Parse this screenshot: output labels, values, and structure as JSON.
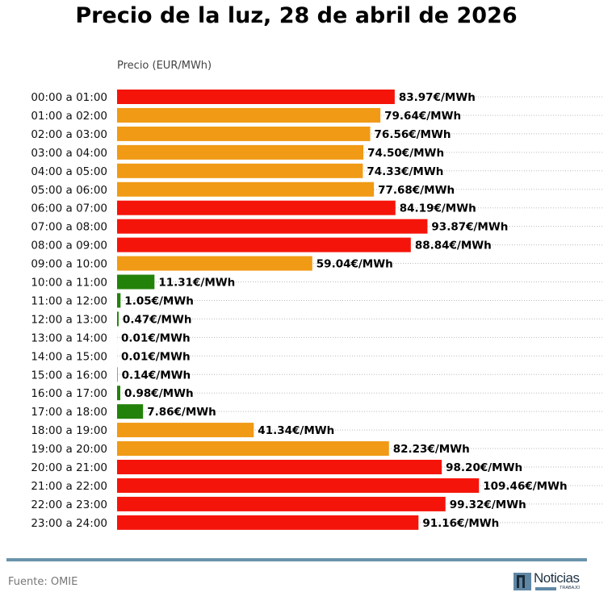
{
  "header": {
    "title": "Precio de la luz, 28 de abril de 2026"
  },
  "footer": {
    "source": "Fuente: OMIE",
    "logo_word": "Noticias",
    "logo_sub": "TRABAJO"
  },
  "colors": {
    "high": "#f5140a",
    "mid": "#f09a15",
    "low": "#23820a",
    "grid": "#bbbbbb",
    "rule": "#6a93ab"
  },
  "chart_data": {
    "type": "bar",
    "orientation": "horizontal",
    "title": "Precio de la luz, 28 de abril de 2026",
    "xlabel": "",
    "ylabel": "Precio (EUR/MWh)",
    "xlim": [
      0,
      147
    ],
    "grid": "dotted horizontal",
    "label_suffix": "€/MWh",
    "categories": [
      "00:00 a 01:00",
      "01:00 a 02:00",
      "02:00 a 03:00",
      "03:00 a 04:00",
      "04:00 a 05:00",
      "05:00 a 06:00",
      "06:00 a 07:00",
      "07:00 a 08:00",
      "08:00 a 09:00",
      "09:00 a 10:00",
      "10:00 a 11:00",
      "11:00 a 12:00",
      "12:00 a 13:00",
      "13:00 a 14:00",
      "14:00 a 15:00",
      "15:00 a 16:00",
      "16:00 a 17:00",
      "17:00 a 18:00",
      "18:00 a 19:00",
      "19:00 a 20:00",
      "20:00 a 21:00",
      "21:00 a 22:00",
      "22:00 a 23:00",
      "23:00 a 24:00"
    ],
    "values": [
      83.97,
      79.64,
      76.56,
      74.5,
      74.33,
      77.68,
      84.19,
      93.87,
      88.84,
      59.04,
      11.31,
      1.05,
      0.47,
      0.01,
      0.01,
      0.14,
      0.98,
      7.86,
      41.34,
      82.23,
      98.2,
      109.46,
      99.32,
      91.16
    ],
    "labels": [
      "83.97€/MWh",
      "79.64€/MWh",
      "76.56€/MWh",
      "74.50€/MWh",
      "74.33€/MWh",
      "77.68€/MWh",
      "84.19€/MWh",
      "93.87€/MWh",
      "88.84€/MWh",
      "59.04€/MWh",
      "11.31€/MWh",
      "1.05€/MWh",
      "0.47€/MWh",
      "0.01€/MWh",
      "0.01€/MWh",
      "0.14€/MWh",
      "0.98€/MWh",
      "7.86€/MWh",
      "41.34€/MWh",
      "82.23€/MWh",
      "98.20€/MWh",
      "109.46€/MWh",
      "99.32€/MWh",
      "91.16€/MWh"
    ],
    "level": [
      "high",
      "mid",
      "mid",
      "mid",
      "mid",
      "mid",
      "high",
      "high",
      "high",
      "mid",
      "low",
      "low",
      "low",
      "low",
      "low",
      "low",
      "low",
      "low",
      "mid",
      "mid",
      "high",
      "high",
      "high",
      "high"
    ]
  }
}
